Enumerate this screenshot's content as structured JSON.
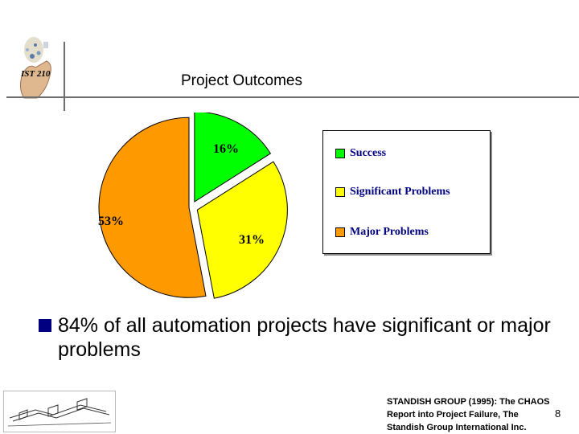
{
  "slide": {
    "logo_text": "IST 210",
    "title": "Project Outcomes",
    "bullet_text": "84% of all automation projects have significant or major problems",
    "citation_lines": [
      "STANDISH GROUP (1995): The CHAOS",
      "Report into Project Failure, The",
      "Standish Group International Inc."
    ],
    "page_number": "8"
  },
  "colors": {
    "success": "#00ff00",
    "significant": "#ffff00",
    "major": "#ff9900",
    "bullet": "#000080",
    "legend_text": "#000080"
  },
  "chart_data": {
    "type": "pie",
    "title": "",
    "categories": [
      "Success",
      "Significant Problems",
      "Major Problems"
    ],
    "values": [
      16,
      31,
      53
    ],
    "labels": [
      "16%",
      "31%",
      "53%"
    ],
    "exploded": true,
    "legend_position": "right"
  }
}
